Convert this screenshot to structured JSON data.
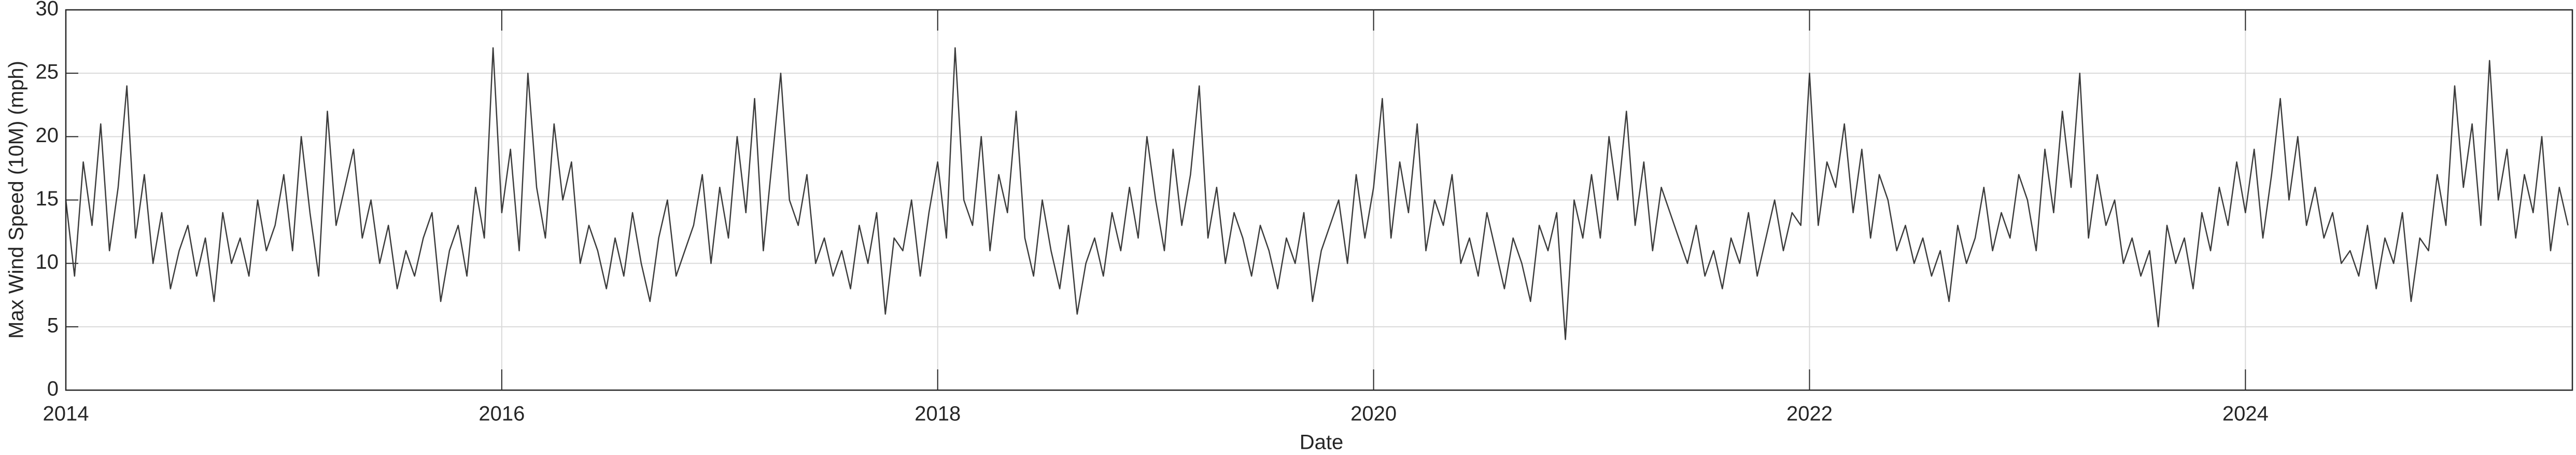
{
  "chart_data": {
    "type": "line",
    "x_label": "Date",
    "y_label": "Max Wind Speed (10M) (mph)",
    "xlim": [
      2014,
      2025.5
    ],
    "xticks": [
      2014,
      2016,
      2018,
      2020,
      2022,
      2024
    ],
    "ylim": [
      0,
      30
    ],
    "yticks": [
      0,
      5,
      10,
      15,
      20,
      25,
      30
    ],
    "grid": true,
    "color": "#3c3c3c",
    "x": [
      2014,
      2014.04,
      2014.08,
      2014.12,
      2014.16,
      2014.2,
      2014.24,
      2014.28,
      2014.32,
      2014.36,
      2014.4,
      2014.44,
      2014.48,
      2014.52,
      2014.56,
      2014.6,
      2014.64,
      2014.68,
      2014.72,
      2014.76,
      2014.8,
      2014.84,
      2014.88,
      2014.92,
      2014.96,
      2015,
      2015.04,
      2015.08,
      2015.12,
      2015.16,
      2015.2,
      2015.24,
      2015.28,
      2015.32,
      2015.36,
      2015.4,
      2015.44,
      2015.48,
      2015.52,
      2015.56,
      2015.6,
      2015.64,
      2015.68,
      2015.72,
      2015.76,
      2015.8,
      2015.84,
      2015.88,
      2015.92,
      2015.96,
      2016,
      2016.04,
      2016.08,
      2016.12,
      2016.16,
      2016.2,
      2016.24,
      2016.28,
      2016.32,
      2016.36,
      2016.4,
      2016.44,
      2016.48,
      2016.52,
      2016.56,
      2016.6,
      2016.64,
      2016.68,
      2016.72,
      2016.76,
      2016.8,
      2016.84,
      2016.88,
      2016.92,
      2016.96,
      2017,
      2017.04,
      2017.08,
      2017.12,
      2017.16,
      2017.2,
      2017.24,
      2017.28,
      2017.32,
      2017.36,
      2017.4,
      2017.44,
      2017.48,
      2017.52,
      2017.56,
      2017.6,
      2017.64,
      2017.68,
      2017.72,
      2017.76,
      2017.8,
      2017.84,
      2017.88,
      2017.92,
      2017.96,
      2018,
      2018.04,
      2018.08,
      2018.12,
      2018.16,
      2018.2,
      2018.24,
      2018.28,
      2018.32,
      2018.36,
      2018.4,
      2018.44,
      2018.48,
      2018.52,
      2018.56,
      2018.6,
      2018.64,
      2018.68,
      2018.72,
      2018.76,
      2018.8,
      2018.84,
      2018.88,
      2018.92,
      2018.96,
      2019,
      2019.04,
      2019.08,
      2019.12,
      2019.16,
      2019.2,
      2019.24,
      2019.28,
      2019.32,
      2019.36,
      2019.4,
      2019.44,
      2019.48,
      2019.52,
      2019.56,
      2019.6,
      2019.64,
      2019.68,
      2019.72,
      2019.76,
      2019.8,
      2019.84,
      2019.88,
      2019.92,
      2019.96,
      2020,
      2020.04,
      2020.08,
      2020.12,
      2020.16,
      2020.2,
      2020.24,
      2020.28,
      2020.32,
      2020.36,
      2020.4,
      2020.44,
      2020.48,
      2020.52,
      2020.56,
      2020.6,
      2020.64,
      2020.68,
      2020.72,
      2020.76,
      2020.8,
      2020.84,
      2020.88,
      2020.92,
      2020.96,
      2021,
      2021.04,
      2021.08,
      2021.12,
      2021.16,
      2021.2,
      2021.24,
      2021.28,
      2021.32,
      2021.36,
      2021.4,
      2021.44,
      2021.48,
      2021.52,
      2021.56,
      2021.6,
      2021.64,
      2021.68,
      2021.72,
      2021.76,
      2021.8,
      2021.84,
      2021.88,
      2021.92,
      2021.96,
      2022,
      2022.04,
      2022.08,
      2022.12,
      2022.16,
      2022.2,
      2022.24,
      2022.28,
      2022.32,
      2022.36,
      2022.4,
      2022.44,
      2022.48,
      2022.52,
      2022.56,
      2022.6,
      2022.64,
      2022.68,
      2022.72,
      2022.76,
      2022.8,
      2022.84,
      2022.88,
      2022.92,
      2022.96,
      2023,
      2023.04,
      2023.08,
      2023.12,
      2023.16,
      2023.2,
      2023.24,
      2023.28,
      2023.32,
      2023.36,
      2023.4,
      2023.44,
      2023.48,
      2023.52,
      2023.56,
      2023.6,
      2023.64,
      2023.68,
      2023.72,
      2023.76,
      2023.8,
      2023.84,
      2023.88,
      2023.92,
      2023.96,
      2024,
      2024.04,
      2024.08,
      2024.12,
      2024.16,
      2024.2,
      2024.24,
      2024.28,
      2024.32,
      2024.36,
      2024.4,
      2024.44,
      2024.48,
      2024.52,
      2024.56,
      2024.6,
      2024.64,
      2024.68,
      2024.72,
      2024.76,
      2024.8,
      2024.84,
      2024.88,
      2024.92,
      2024.96,
      2025,
      2025.04,
      2025.08,
      2025.12,
      2025.16,
      2025.2,
      2025.24,
      2025.28,
      2025.32,
      2025.36,
      2025.4,
      2025.44,
      2025.48
    ],
    "values": [
      15,
      9,
      18,
      13,
      21,
      11,
      16,
      24,
      12,
      17,
      10,
      14,
      8,
      11,
      13,
      9,
      12,
      7,
      14,
      10,
      12,
      9,
      15,
      11,
      13,
      17,
      11,
      20,
      14,
      9,
      22,
      13,
      16,
      19,
      12,
      15,
      10,
      13,
      8,
      11,
      9,
      12,
      14,
      7,
      11,
      13,
      9,
      16,
      12,
      27,
      14,
      19,
      11,
      25,
      16,
      12,
      21,
      15,
      18,
      10,
      13,
      11,
      8,
      12,
      9,
      14,
      10,
      7,
      12,
      15,
      9,
      11,
      13,
      17,
      10,
      16,
      12,
      20,
      14,
      23,
      11,
      18,
      25,
      15,
      13,
      17,
      10,
      12,
      9,
      11,
      8,
      13,
      10,
      14,
      6,
      12,
      11,
      15,
      9,
      14,
      18,
      12,
      27,
      15,
      13,
      20,
      11,
      17,
      14,
      22,
      12,
      9,
      15,
      11,
      8,
      13,
      6,
      10,
      12,
      9,
      14,
      11,
      16,
      12,
      20,
      15,
      11,
      19,
      13,
      17,
      24,
      12,
      16,
      10,
      14,
      12,
      9,
      13,
      11,
      8,
      12,
      10,
      14,
      7,
      11,
      13,
      15,
      10,
      17,
      12,
      16,
      23,
      12,
      18,
      14,
      21,
      11,
      15,
      13,
      17,
      10,
      12,
      9,
      14,
      11,
      8,
      12,
      10,
      7,
      13,
      11,
      14,
      4,
      15,
      12,
      17,
      12,
      20,
      15,
      22,
      13,
      18,
      11,
      16,
      14,
      12,
      10,
      13,
      9,
      11,
      8,
      12,
      10,
      14,
      9,
      12,
      15,
      11,
      14,
      13,
      25,
      13,
      18,
      16,
      21,
      14,
      19,
      12,
      17,
      15,
      11,
      13,
      10,
      12,
      9,
      11,
      7,
      13,
      10,
      12,
      16,
      11,
      14,
      12,
      17,
      15,
      11,
      19,
      14,
      22,
      16,
      25,
      12,
      17,
      13,
      15,
      10,
      12,
      9,
      11,
      5,
      13,
      10,
      12,
      8,
      14,
      11,
      16,
      13,
      18,
      14,
      19,
      12,
      17,
      23,
      15,
      20,
      13,
      16,
      12,
      14,
      10,
      11,
      9,
      13,
      8,
      12,
      10,
      14,
      7,
      12,
      11,
      17,
      13,
      24,
      16,
      21,
      13,
      26,
      15,
      19,
      12,
      17,
      14,
      20,
      11,
      16,
      13
    ]
  }
}
